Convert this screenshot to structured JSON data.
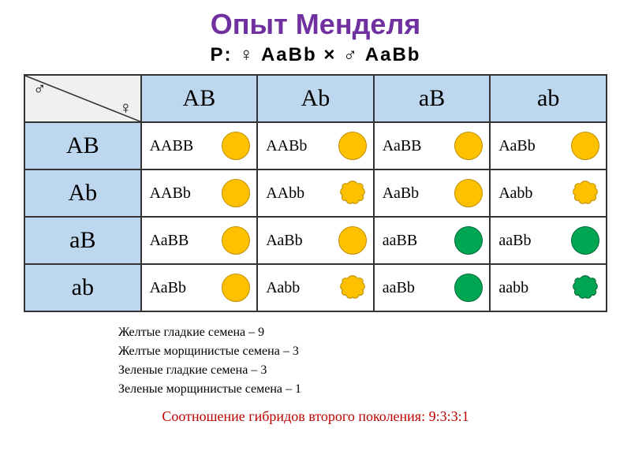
{
  "title": {
    "text": "Опыт Менделя",
    "color": "#7030a0"
  },
  "subtitle": "P:   ♀ AaBb    ×    ♂ AaBb",
  "corner": {
    "male": "♂",
    "female": "♀"
  },
  "headerBg": "#bdd7ee",
  "colHeaders": [
    "АВ",
    "Аb",
    "аВ",
    "аb"
  ],
  "rowHeaders": [
    "АВ",
    "Аb",
    "аВ",
    "аb"
  ],
  "colors": {
    "yellow": "#ffc000",
    "yellowStroke": "#bf9000",
    "green": "#00a651",
    "greenStroke": "#006837"
  },
  "cells": [
    [
      {
        "genotype": "ААВВ",
        "shape": "smooth",
        "color": "yellow"
      },
      {
        "genotype": "ААВb",
        "shape": "smooth",
        "color": "yellow"
      },
      {
        "genotype": "АаВВ",
        "shape": "smooth",
        "color": "yellow"
      },
      {
        "genotype": "АаВb",
        "shape": "smooth",
        "color": "yellow"
      }
    ],
    [
      {
        "genotype": "ААВb",
        "shape": "smooth",
        "color": "yellow"
      },
      {
        "genotype": "ААbb",
        "shape": "wrinkled",
        "color": "yellow"
      },
      {
        "genotype": "АаВb",
        "shape": "smooth",
        "color": "yellow"
      },
      {
        "genotype": "Ааbb",
        "shape": "wrinkled",
        "color": "yellow"
      }
    ],
    [
      {
        "genotype": "АаВВ",
        "shape": "smooth",
        "color": "yellow"
      },
      {
        "genotype": "АаВb",
        "shape": "smooth",
        "color": "yellow"
      },
      {
        "genotype": "ааВВ",
        "shape": "smooth",
        "color": "green"
      },
      {
        "genotype": "ааВb",
        "shape": "smooth",
        "color": "green"
      }
    ],
    [
      {
        "genotype": "АаВb",
        "shape": "smooth",
        "color": "yellow"
      },
      {
        "genotype": "Ааbb",
        "shape": "wrinkled",
        "color": "yellow"
      },
      {
        "genotype": "ааВb",
        "shape": "smooth",
        "color": "green"
      },
      {
        "genotype": "ааbb",
        "shape": "wrinkled",
        "color": "green"
      }
    ]
  ],
  "legend": [
    "Желтые гладкие семена – 9",
    "Желтые морщинистые семена – 3",
    "Зеленые гладкие семена – 3",
    "Зеленые морщинистые семена – 1"
  ],
  "ratio": {
    "text": "Соотношение гибридов второго поколения: 9:3:3:1",
    "color": "#c00000"
  }
}
